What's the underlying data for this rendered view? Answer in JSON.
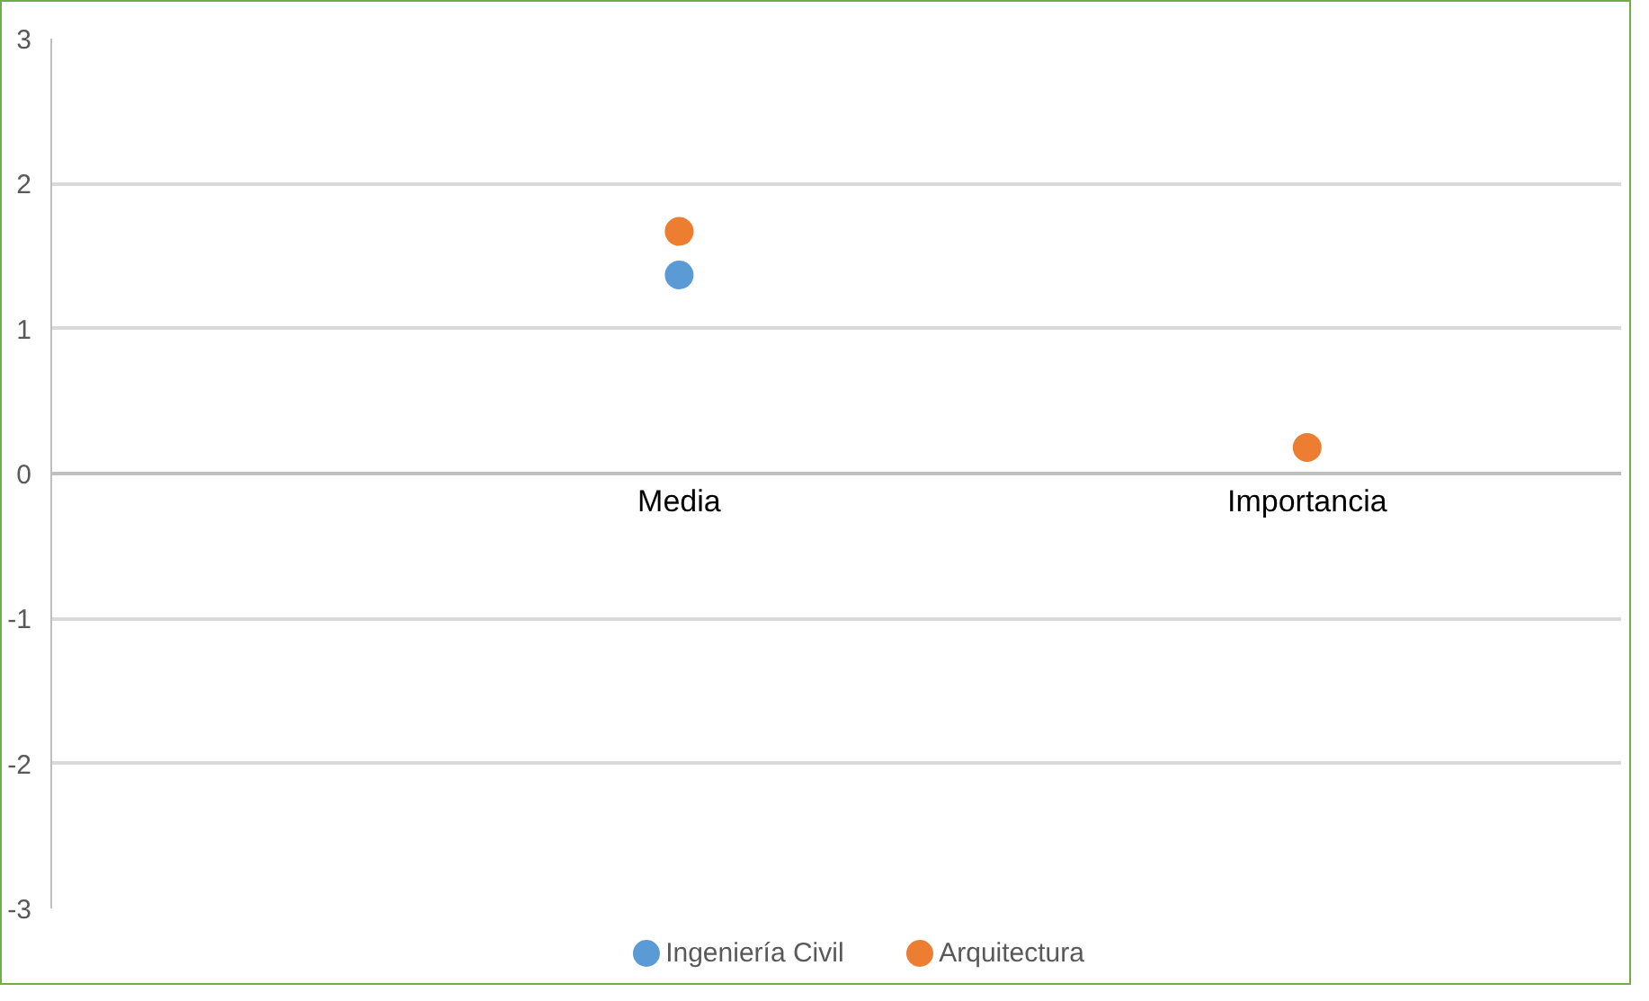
{
  "chart_data": {
    "type": "scatter",
    "categories": [
      "Media",
      "Importancia"
    ],
    "series": [
      {
        "name": "Ingeniería Civil",
        "color": "#5b9bd5",
        "values": [
          1.37,
          null
        ]
      },
      {
        "name": "Arquitectura",
        "color": "#ed7d31",
        "values": [
          1.67,
          0.18
        ]
      }
    ],
    "ylim": [
      -3,
      3
    ],
    "yticks": [
      -3,
      -2,
      -1,
      0,
      1,
      2,
      3
    ],
    "grid": "y",
    "legend": "bottom",
    "marker": "circle"
  }
}
